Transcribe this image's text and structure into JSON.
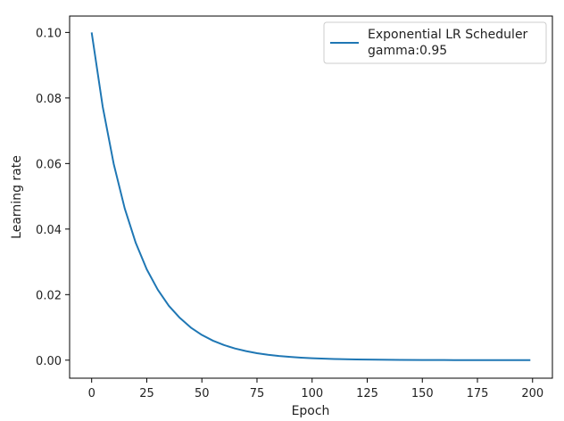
{
  "chart_data": {
    "type": "line",
    "title": "",
    "xlabel": "Epoch",
    "ylabel": "Learning rate",
    "xlim": [
      -10,
      209
    ],
    "ylim": [
      -0.0055,
      0.105
    ],
    "xticks": [
      0,
      25,
      50,
      75,
      100,
      125,
      150,
      175,
      200
    ],
    "xtick_labels": [
      "0",
      "25",
      "50",
      "75",
      "100",
      "125",
      "150",
      "175",
      "200"
    ],
    "yticks": [
      0.0,
      0.02,
      0.04,
      0.06,
      0.08,
      0.1
    ],
    "ytick_labels": [
      "0.00",
      "0.02",
      "0.04",
      "0.06",
      "0.08",
      "0.10"
    ],
    "grid": false,
    "legend_position": "top-right",
    "legend_lines": [
      "Exponential LR Scheduler",
      "gamma:0.95"
    ],
    "series": [
      {
        "name": "Exponential LR Scheduler gamma:0.95",
        "color": "#1f77b4",
        "x": [
          0,
          5,
          10,
          15,
          20,
          25,
          30,
          35,
          40,
          45,
          50,
          55,
          60,
          65,
          70,
          75,
          80,
          85,
          90,
          95,
          100,
          110,
          120,
          130,
          140,
          150,
          160,
          170,
          180,
          190,
          199
        ],
        "y": [
          0.1,
          0.0774,
          0.0599,
          0.0463,
          0.0358,
          0.0277,
          0.0215,
          0.0166,
          0.0129,
          0.00994,
          0.00769,
          0.00595,
          0.00461,
          0.00357,
          0.00276,
          0.00213,
          0.00165,
          0.00128,
          0.00099,
          0.00077,
          0.00059,
          0.00035,
          0.00021,
          0.00013,
          8e-05,
          5e-05,
          3e-05,
          2e-05,
          1e-05,
          1e-05,
          0.0
        ]
      }
    ]
  }
}
